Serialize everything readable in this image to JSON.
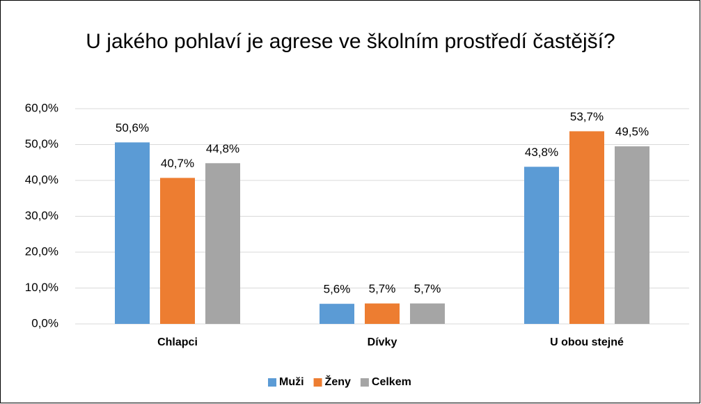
{
  "chart_data": {
    "type": "bar",
    "title": "U jakého pohlaví je agrese ve školním prostředí častější?",
    "categories": [
      "Chlapci",
      "Dívky",
      "U obou stejné"
    ],
    "series": [
      {
        "name": "Muži",
        "color": "#5b9bd5",
        "values": [
          50.6,
          5.6,
          43.8
        ],
        "value_labels": [
          "50,6%",
          "5,6%",
          "43,8%"
        ]
      },
      {
        "name": "Ženy",
        "color": "#ed7d31",
        "values": [
          40.7,
          5.7,
          53.7
        ],
        "value_labels": [
          "40,7%",
          "5,7%",
          "53,7%"
        ]
      },
      {
        "name": "Celkem",
        "color": "#a5a5a5",
        "values": [
          44.8,
          5.7,
          49.5
        ],
        "value_labels": [
          "44,8%",
          "5,7%",
          "49,5%"
        ]
      }
    ],
    "ylim": [
      0,
      60
    ],
    "yticks": [
      {
        "value": 0,
        "label": "0,0%"
      },
      {
        "value": 10,
        "label": "10,0%"
      },
      {
        "value": 20,
        "label": "20,0%"
      },
      {
        "value": 30,
        "label": "30,0%"
      },
      {
        "value": 40,
        "label": "40,0%"
      },
      {
        "value": 50,
        "label": "50,0%"
      },
      {
        "value": 60,
        "label": "60,0%"
      }
    ],
    "grid": true,
    "legend": "bottom"
  }
}
